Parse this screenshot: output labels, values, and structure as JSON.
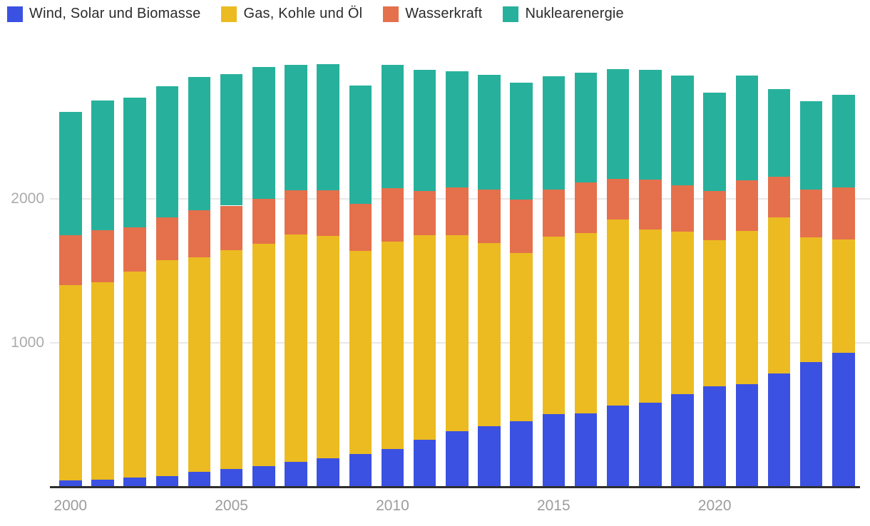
{
  "chart_data": {
    "type": "bar",
    "stacked": true,
    "categories": [
      "2000",
      "2001",
      "2002",
      "2003",
      "2004",
      "2005",
      "2006",
      "2007",
      "2008",
      "2009",
      "2010",
      "2011",
      "2012",
      "2013",
      "2014",
      "2015",
      "2016",
      "2017",
      "2018",
      "2019",
      "2020",
      "2021",
      "2022",
      "2023",
      "2024"
    ],
    "series": [
      {
        "name": "Wind, Solar und Biomasse",
        "color": "#3b51e2",
        "values": [
          45,
          50,
          65,
          75,
          105,
          125,
          145,
          175,
          200,
          230,
          265,
          325,
          385,
          420,
          455,
          505,
          510,
          565,
          585,
          645,
          700,
          715,
          790,
          865,
          930
        ]
      },
      {
        "name": "Gas, Kohle und Öl",
        "color": "#ebbb21",
        "values": [
          1355,
          1370,
          1430,
          1500,
          1490,
          1520,
          1545,
          1580,
          1545,
          1410,
          1440,
          1425,
          1365,
          1275,
          1170,
          1235,
          1255,
          1295,
          1205,
          1130,
          1015,
          1065,
          1085,
          870,
          790
        ]
      },
      {
        "name": "Wasserkraft",
        "color": "#e5704c",
        "values": [
          350,
          365,
          310,
          300,
          330,
          310,
          310,
          305,
          315,
          325,
          370,
          305,
          330,
          370,
          370,
          325,
          350,
          280,
          345,
          320,
          340,
          350,
          280,
          330,
          360
        ]
      },
      {
        "name": "Nuklearenergie",
        "color": "#27b19c",
        "values": [
          855,
          900,
          900,
          910,
          925,
          915,
          920,
          875,
          880,
          825,
          860,
          845,
          810,
          800,
          815,
          790,
          765,
          765,
          765,
          765,
          685,
          730,
          610,
          615,
          645
        ]
      }
    ],
    "yticks": [
      {
        "value": 1000,
        "label": "1000"
      },
      {
        "value": 2000,
        "label": "2000"
      }
    ],
    "xtick_labels": [
      "2000",
      "2005",
      "2010",
      "2015",
      "2020"
    ],
    "ylim": [
      0,
      2960
    ],
    "grid": true,
    "legend_position": "top-left",
    "style": {
      "axis_line_color": "#2f2f2f",
      "grid_color": "#e8e8e8",
      "tick_text_color": "#ababab",
      "legend_text_color": "#2b2b2b",
      "background": "#ffffff"
    }
  }
}
